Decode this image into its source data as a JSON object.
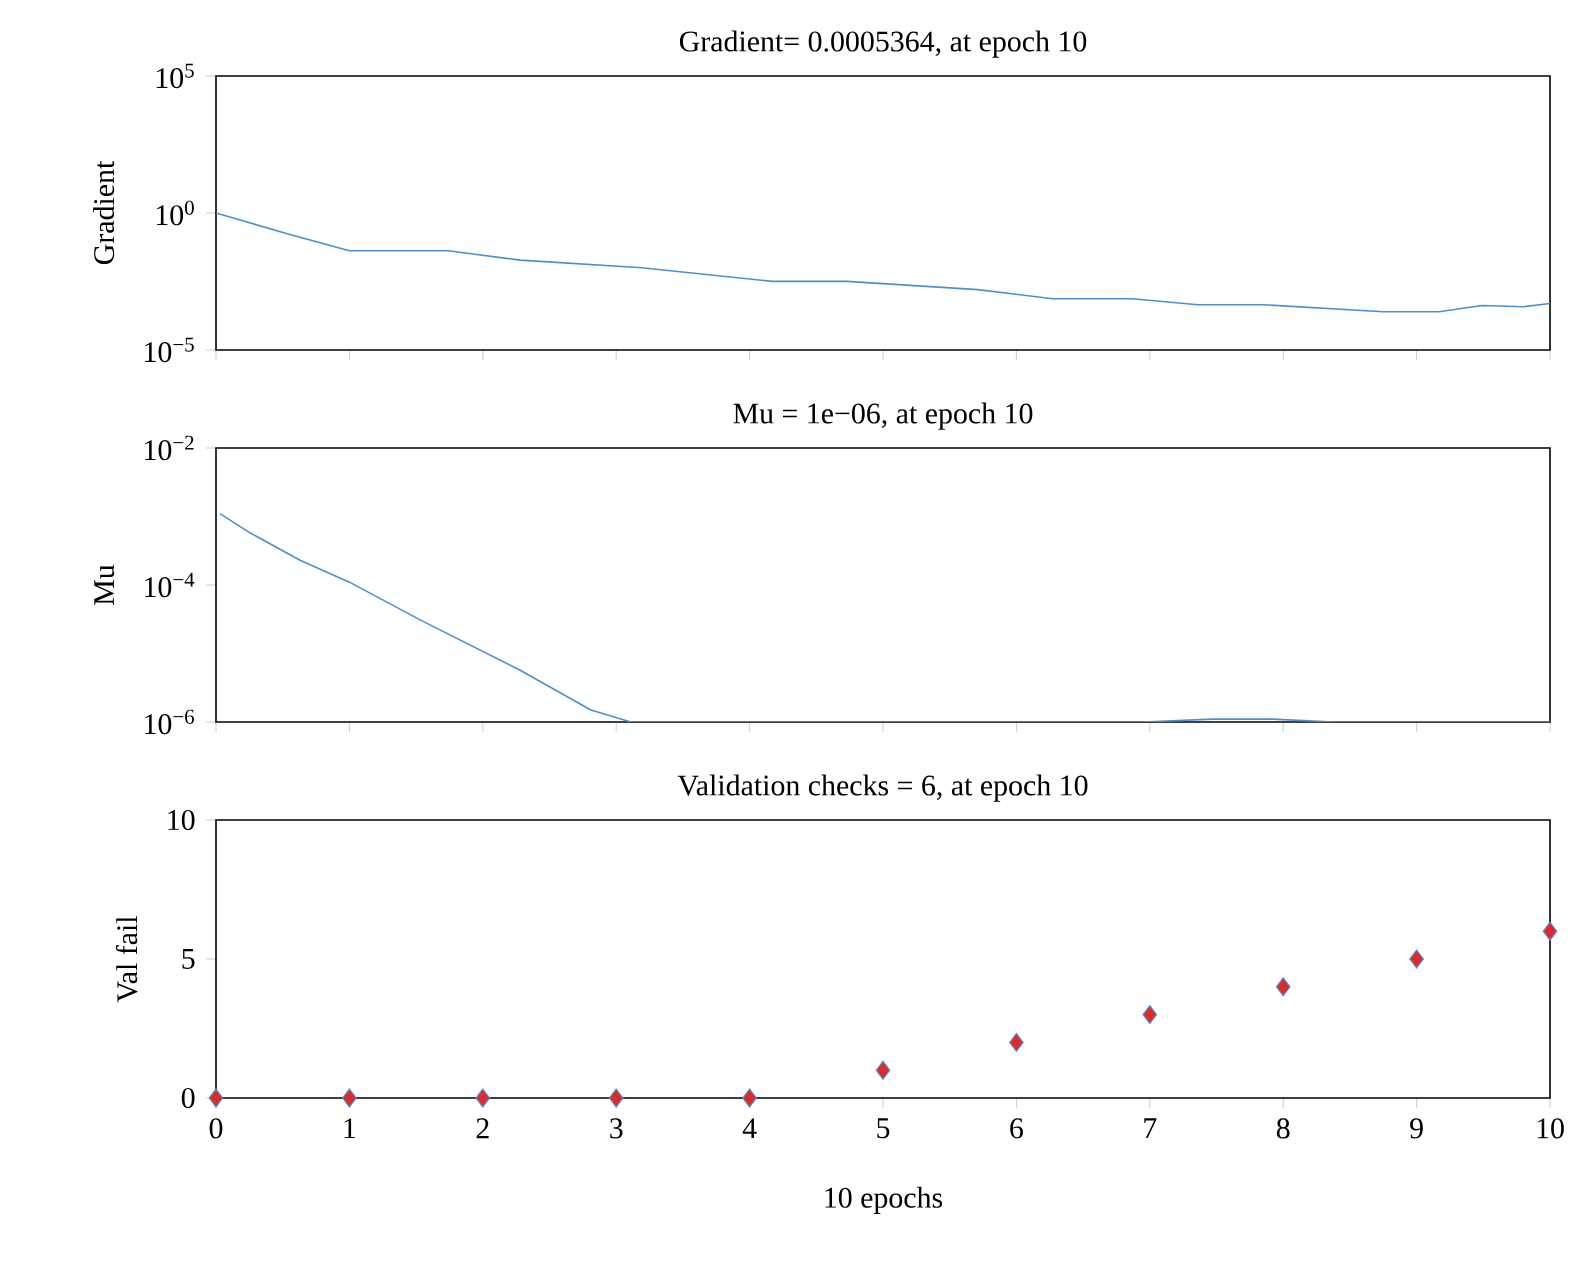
{
  "chart_data": [
    {
      "type": "line",
      "title": "Gradient= 0.0005364, at epoch 10",
      "ylabel": "Gradient",
      "log": "y",
      "tick_labels": "y",
      "color": "#4a90d0",
      "x": [
        0,
        0.56,
        1.0,
        1.74,
        2.28,
        3.19,
        4.17,
        4.73,
        5.71,
        6.27,
        6.87,
        7.36,
        7.85,
        8.75,
        9.17,
        9.49,
        9.8,
        10
      ],
      "values": [
        1,
        0.16,
        0.042,
        0.042,
        0.019,
        0.01,
        0.0032,
        0.0032,
        0.0016,
        0.00074,
        0.00074,
        0.00045,
        0.00045,
        0.00025,
        0.00025,
        0.00042,
        0.00038,
        0.0005
      ],
      "xlim": [
        0,
        10
      ],
      "xticks": [
        0,
        1,
        2,
        3,
        4,
        5,
        6,
        7,
        8,
        9,
        10
      ],
      "ylim": [
        1e-05,
        100000
      ],
      "yticks": [
        {
          "value": 1e-05,
          "label": "10$^{−5}$"
        },
        {
          "value": 1,
          "label": "10$^{0}$"
        },
        {
          "value": 100000,
          "label": "10$^{5}$"
        }
      ]
    },
    {
      "type": "line",
      "title": "Mu = 1e−06, at epoch 10",
      "ylabel": "Mu",
      "log": "y",
      "tick_labels": "y",
      "color": "#4a90d0",
      "x": [
        0.03,
        0.24,
        0.63,
        1.0,
        1.53,
        2.28,
        2.81,
        3.11,
        6.95,
        7.47,
        7.92,
        8.38,
        10
      ],
      "values": [
        0.0011,
        0.0006,
        0.00023,
        0.00011,
        3.1e-05,
        5.7e-06,
        1.5e-06,
        1e-06,
        1e-06,
        1.1e-06,
        1.1e-06,
        1e-06,
        1e-06
      ],
      "xlim": [
        0,
        10
      ],
      "xticks": [
        0,
        1,
        2,
        3,
        4,
        5,
        6,
        7,
        8,
        9,
        10
      ],
      "ylim": [
        1e-06,
        0.01
      ],
      "yticks": [
        {
          "value": 1e-06,
          "label": "10$^{−6}$"
        },
        {
          "value": 0.0001,
          "label": "10$^{−4}$"
        },
        {
          "value": 0.01,
          "label": "10$^{−2}$"
        }
      ]
    },
    {
      "type": "scatter",
      "title": "Validation checks = 6, at epoch 10",
      "ylabel": "Val fail",
      "xlabel": "10 epochs",
      "marker": "diamond",
      "color": "#e02a2a",
      "x": [
        0,
        1,
        2,
        3,
        4,
        5,
        6,
        7,
        8,
        9,
        10
      ],
      "values": [
        0,
        0,
        0,
        0,
        0,
        1,
        2,
        3,
        4,
        5,
        6
      ],
      "xlim": [
        0,
        10
      ],
      "xticks": [
        0,
        1,
        2,
        3,
        4,
        5,
        6,
        7,
        8,
        9,
        10
      ],
      "ylim": [
        0,
        10
      ],
      "yticks": [
        0,
        5,
        10
      ]
    }
  ]
}
